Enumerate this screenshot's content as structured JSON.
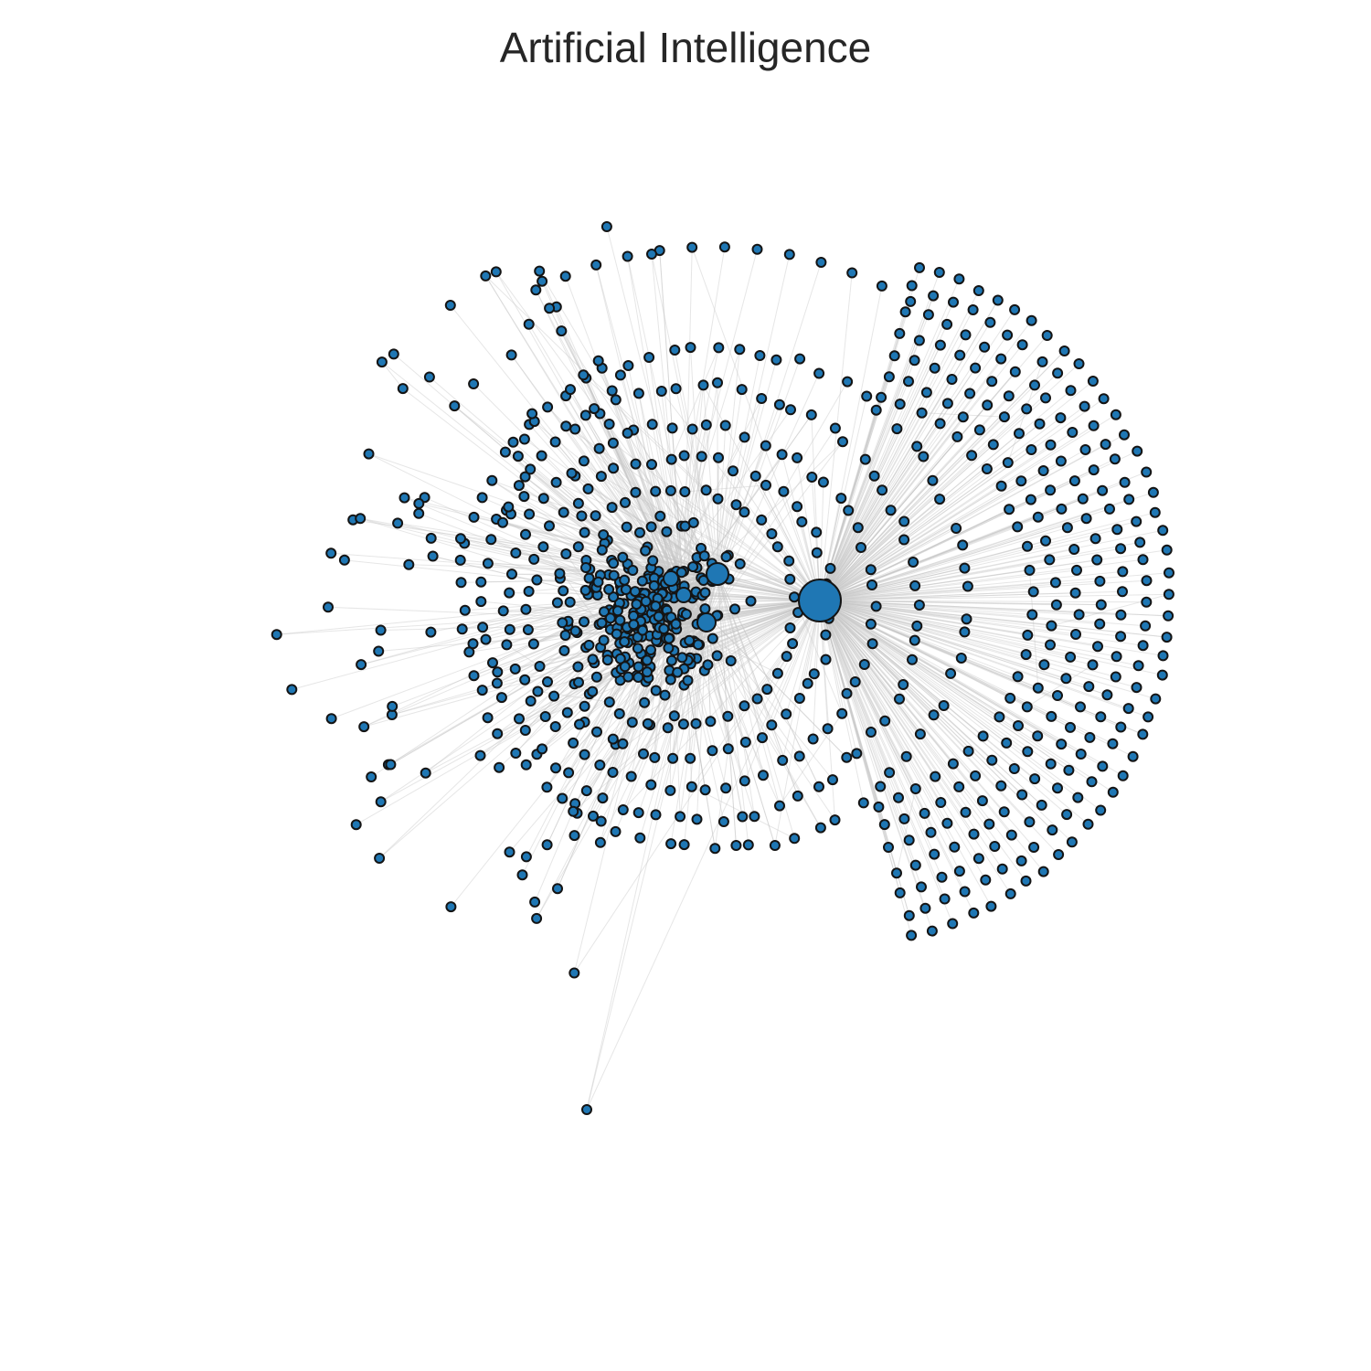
{
  "figure": {
    "title": "Artificial Intelligence"
  },
  "colors": {
    "node_fill": "#1f77b4",
    "node_outline": "#141414",
    "edge": "#c8c8c8",
    "background": "#ffffff",
    "title_text": "#262626"
  },
  "network": {
    "layout": "force-directed",
    "hubs": 4,
    "edges_shown": true
  }
}
